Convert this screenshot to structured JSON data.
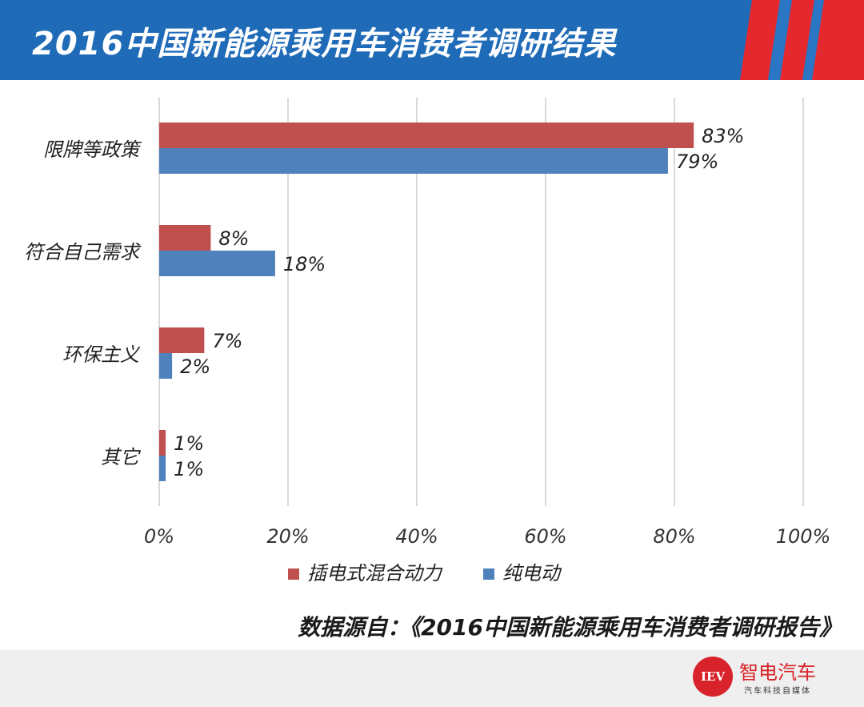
{
  "header": {
    "title": "2016中国新能源乘用车消费者调研结果"
  },
  "colors": {
    "header": "#1f6bb8",
    "stripe_red": "#e5282d",
    "stripe_blue": "#2b76c4",
    "series_phev": "#c0504d",
    "series_ev": "#4f81bd",
    "logo": "#d8232a"
  },
  "chart_data": {
    "type": "bar",
    "orientation": "horizontal",
    "categories": [
      "限牌等政策",
      "符合自己需求",
      "环保主义",
      "其它"
    ],
    "series": [
      {
        "name": "插电式混合动力",
        "values": [
          83,
          8,
          7,
          1
        ],
        "labels": [
          "83%",
          "8%",
          "7%",
          "1%"
        ]
      },
      {
        "name": "纯电动",
        "values": [
          79,
          18,
          2,
          1
        ],
        "labels": [
          "79%",
          "18%",
          "2%",
          "1%"
        ]
      }
    ],
    "xlim": [
      0,
      100
    ],
    "xticks": [
      "0%",
      "20%",
      "40%",
      "60%",
      "80%",
      "100%"
    ],
    "grid": true,
    "legend_position": "bottom"
  },
  "source": {
    "text": "数据源自：《2016中国新能源乘用车消费者调研报告》"
  },
  "logo": {
    "badge": "IEV",
    "name": "智电汽车",
    "slogan": "汽车科技自媒体"
  }
}
